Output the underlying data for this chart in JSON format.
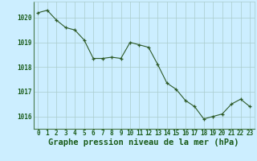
{
  "x": [
    0,
    1,
    2,
    3,
    4,
    5,
    6,
    7,
    8,
    9,
    10,
    11,
    12,
    13,
    14,
    15,
    16,
    17,
    18,
    19,
    20,
    21,
    22,
    23
  ],
  "y": [
    1020.2,
    1020.3,
    1019.9,
    1019.6,
    1019.5,
    1019.1,
    1018.35,
    1018.35,
    1018.4,
    1018.35,
    1019.0,
    1018.9,
    1018.8,
    1018.1,
    1017.35,
    1017.1,
    1016.65,
    1016.4,
    1015.9,
    1016.0,
    1016.1,
    1016.5,
    1016.7,
    1016.4
  ],
  "line_color": "#2d5a27",
  "marker_color": "#2d5a27",
  "bg_color": "#cceeff",
  "grid_color": "#aacccc",
  "text_color": "#1a5c1a",
  "xlabel": "Graphe pression niveau de la mer (hPa)",
  "ylim_min": 1015.5,
  "ylim_max": 1020.65,
  "yticks": [
    1016,
    1017,
    1018,
    1019,
    1020
  ],
  "xticks": [
    0,
    1,
    2,
    3,
    4,
    5,
    6,
    7,
    8,
    9,
    10,
    11,
    12,
    13,
    14,
    15,
    16,
    17,
    18,
    19,
    20,
    21,
    22,
    23
  ],
  "tick_fontsize": 5.5,
  "xlabel_fontsize": 7.5
}
